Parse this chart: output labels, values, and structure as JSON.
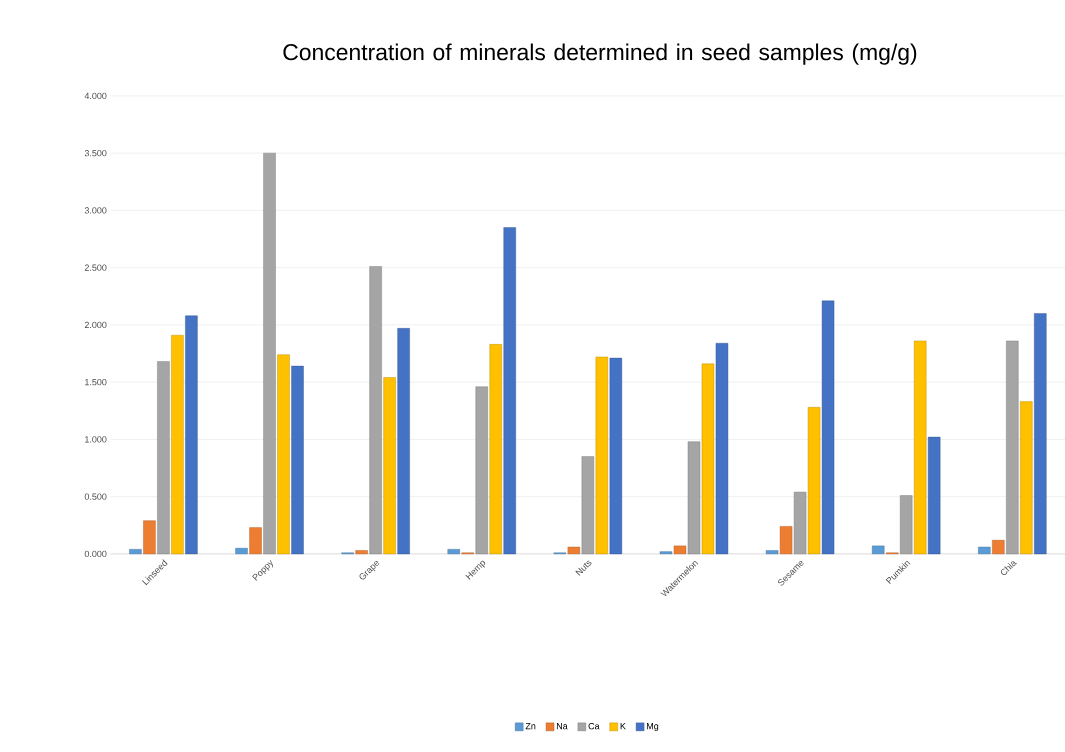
{
  "chart_data": {
    "type": "bar",
    "title": "Concentration of minerals determined in seed samples (mg/g)",
    "categories": [
      "Linseed",
      "Poppy",
      "Grape",
      "Hemp",
      "Nuts",
      "Watermelon",
      "Sesame",
      "Pumkin",
      "Chia"
    ],
    "series": [
      {
        "name": "Zn",
        "color": "#5b9bd5",
        "values": [
          0.04,
          0.05,
          0.01,
          0.04,
          0.01,
          0.02,
          0.03,
          0.07,
          0.06
        ]
      },
      {
        "name": "Na",
        "color": "#ed7d31",
        "values": [
          0.29,
          0.23,
          0.03,
          0.01,
          0.06,
          0.07,
          0.24,
          0.01,
          0.12
        ]
      },
      {
        "name": "Ca",
        "color": "#a5a5a5",
        "values": [
          1.68,
          3.5,
          2.51,
          1.46,
          0.85,
          0.98,
          0.54,
          0.51,
          1.86
        ]
      },
      {
        "name": "K",
        "color": "#ffc000",
        "values": [
          1.91,
          1.74,
          1.54,
          1.83,
          1.72,
          1.66,
          1.28,
          1.86,
          1.33
        ]
      },
      {
        "name": "Mg",
        "color": "#4472c4",
        "values": [
          2.08,
          1.64,
          1.97,
          2.85,
          1.71,
          1.84,
          2.21,
          1.02,
          2.1
        ]
      }
    ],
    "ylim": [
      0,
      4
    ],
    "yticks": [
      {
        "value": 0,
        "label": "0.000"
      },
      {
        "value": 0.5,
        "label": "0.500"
      },
      {
        "value": 1,
        "label": "1.000"
      },
      {
        "value": 1.5,
        "label": "1.500"
      },
      {
        "value": 2,
        "label": "2.000"
      },
      {
        "value": 2.5,
        "label": "2.500"
      },
      {
        "value": 3,
        "label": "3.000"
      },
      {
        "value": 3.5,
        "label": "3.500"
      },
      {
        "value": 4,
        "label": "4.000"
      }
    ],
    "grid": "y",
    "legend": "bottom"
  }
}
